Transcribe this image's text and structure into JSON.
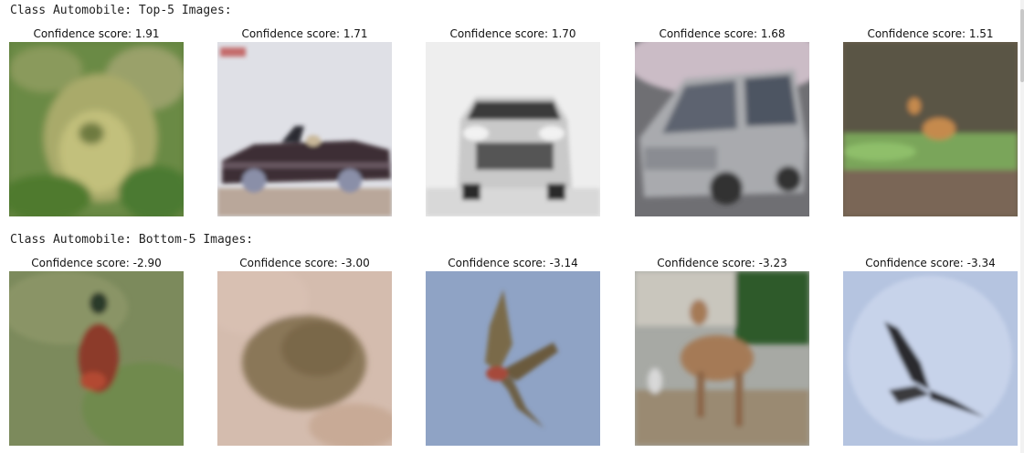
{
  "output": {
    "sections": [
      {
        "title": "Class Automobile: Top-5 Images:",
        "images": [
          {
            "score_label": "Confidence score: 1.91",
            "subject": "frog",
            "icon": "frog-image"
          },
          {
            "score_label": "Confidence score: 1.71",
            "subject": "convertible car",
            "icon": "car-image"
          },
          {
            "score_label": "Confidence score: 1.70",
            "subject": "white car front",
            "icon": "car-image"
          },
          {
            "score_label": "Confidence score: 1.68",
            "subject": "silver minivan",
            "icon": "car-image"
          },
          {
            "score_label": "Confidence score: 1.51",
            "subject": "deer in grass",
            "icon": "deer-image"
          }
        ]
      },
      {
        "title": "Class Automobile: Bottom-5 Images:",
        "images": [
          {
            "score_label": "Confidence score: -2.90",
            "subject": "bird on grass",
            "icon": "bird-image"
          },
          {
            "score_label": "Confidence score: -3.00",
            "subject": "toad",
            "icon": "frog-image"
          },
          {
            "score_label": "Confidence score: -3.14",
            "subject": "bird in flight",
            "icon": "bird-image"
          },
          {
            "score_label": "Confidence score: -3.23",
            "subject": "deer",
            "icon": "deer-image"
          },
          {
            "score_label": "Confidence score: -3.34",
            "subject": "eagle in flight",
            "icon": "bird-image"
          }
        ]
      }
    ]
  }
}
